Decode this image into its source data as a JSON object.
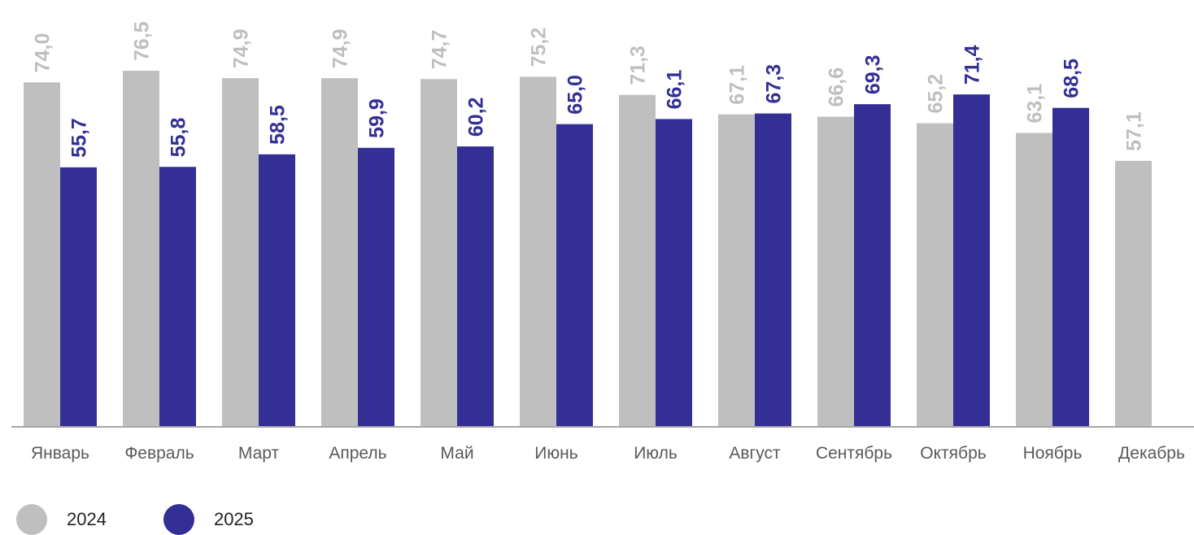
{
  "chart_data": {
    "type": "bar",
    "categories": [
      "Январь",
      "Февраль",
      "Март",
      "Апрель",
      "Май",
      "Июнь",
      "Июль",
      "Август",
      "Сентябрь",
      "Октябрь",
      "Ноябрь",
      "Декабрь"
    ],
    "series": [
      {
        "name": "2024",
        "color": "#bfbfbf",
        "values": [
          74.0,
          76.5,
          74.9,
          74.9,
          74.7,
          75.2,
          71.3,
          67.1,
          66.6,
          65.2,
          63.1,
          57.1
        ],
        "labels": [
          "74,0",
          "76,5",
          "74,9",
          "74,9",
          "74,7",
          "75,2",
          "71,3",
          "67,1",
          "66,6",
          "65,2",
          "63,1",
          "57,1"
        ]
      },
      {
        "name": "2025",
        "color": "#332f94",
        "values": [
          55.7,
          55.8,
          58.5,
          59.9,
          60.2,
          65.0,
          66.1,
          67.3,
          69.3,
          71.4,
          68.5,
          null
        ],
        "labels": [
          "55,7",
          "55,8",
          "58,5",
          "59,9",
          "60,2",
          "65,0",
          "66,1",
          "67,3",
          "69,3",
          "71,4",
          "68,5",
          ""
        ]
      }
    ],
    "ylim": [
      0,
      80
    ],
    "grid": false,
    "legend_position": "bottom-left",
    "axis_label_color": "#595959"
  }
}
